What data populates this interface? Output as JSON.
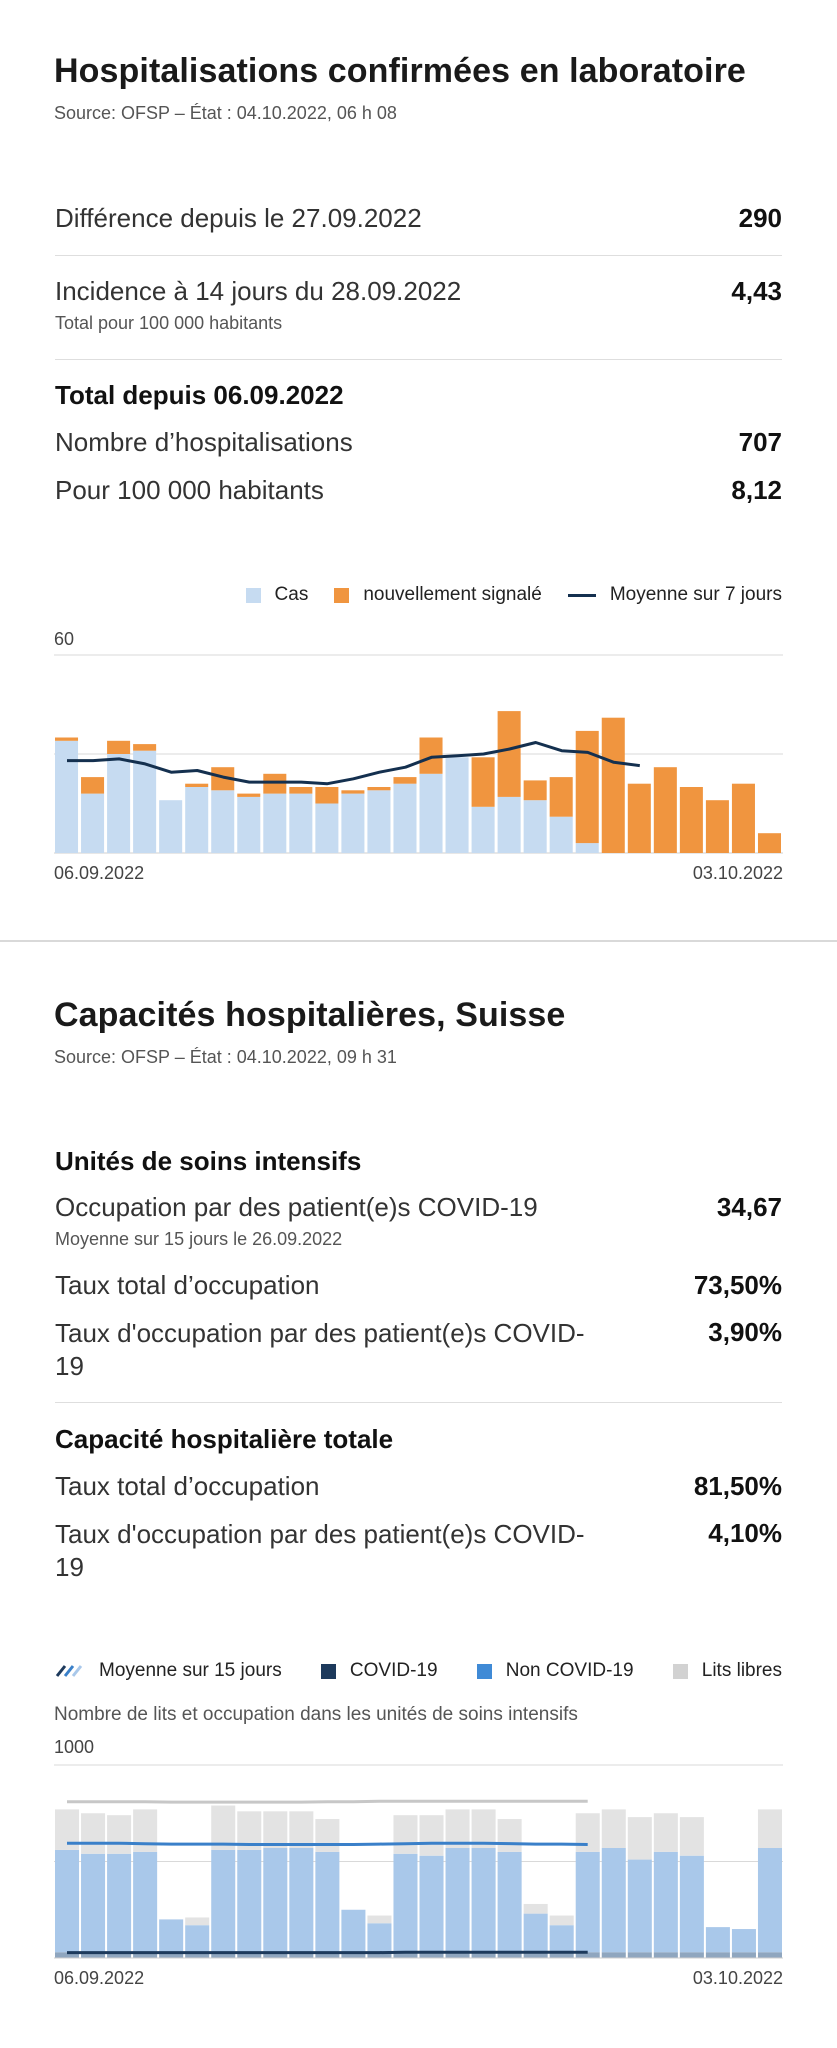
{
  "hosp": {
    "title": "Hospitalisations confirmées en laboratoire",
    "source": "Source: OFSP – État : 04.10.2022, 06 h 08",
    "diff_label": "Différence depuis le 27.09.2022",
    "diff_value": "290",
    "incidence_label": "Incidence à 14 jours du 28.09.2022",
    "incidence_value": "4,43",
    "incidence_sub": "Total pour 100 000 habitants",
    "total_header": "Total depuis 06.09.2022",
    "count_label": "Nombre d’hospitalisations",
    "count_value": "707",
    "per100k_label": "Pour 100 000 habitants",
    "per100k_value": "8,12",
    "legend": {
      "cases": "Cas",
      "new": "nouvellement signalé",
      "avg": "Moyenne sur 7 jours"
    }
  },
  "capacity": {
    "title": "Capacités hospitalières, Suisse",
    "source": "Source: OFSP – État : 04.10.2022, 09 h 31",
    "icu_header": "Unités de soins intensifs",
    "icu_covid_label": "Occupation par des patient(e)s COVID-19",
    "icu_covid_value": "34,67",
    "icu_covid_sub": "Moyenne sur 15 jours le 26.09.2022",
    "icu_total_label": "Taux total d’occupation",
    "icu_total_value": "73,50%",
    "icu_rate_label": "Taux d'occupation par des patient(e)s COVID-19",
    "icu_rate_value": "3,90%",
    "hosp_header": "Capacité hospitalière totale",
    "hosp_total_label": "Taux total d’occupation",
    "hosp_total_value": "81,50%",
    "hosp_rate_label": "Taux d'occupation par des patient(e)s COVID-19",
    "hosp_rate_value": "4,10%",
    "legend": {
      "avg": "Moyenne sur 15 jours",
      "covid": "COVID-19",
      "noncovid": "Non COVID-19",
      "free": "Lits libres"
    },
    "chart_title": "Nombre de lits et occupation dans les unités de soins intensifs"
  },
  "colors": {
    "cases": "#c6dbf1",
    "new": "#f0953f",
    "avg_hosp": "#14304f",
    "covid": "#1d3a5c",
    "noncovid": "#a9c8ea",
    "free": "#e3e3e3",
    "avg15_noncovid": "#3a80c9",
    "avg15_free": "#c7c7c7"
  },
  "chart_data": [
    {
      "type": "bar",
      "stacked": true,
      "x_start_label": "06.09.2022",
      "x_end_label": "03.10.2022",
      "ylim": [
        0,
        60
      ],
      "y_ticks": [
        60
      ],
      "grid": true,
      "legend_position": "top-right",
      "series": [
        {
          "name": "Cas",
          "values": [
            34,
            18,
            30,
            31,
            16,
            20,
            19,
            17,
            18,
            18,
            15,
            18,
            19,
            21,
            24,
            29,
            14,
            17,
            16,
            11,
            3,
            0,
            0,
            0,
            0,
            0,
            0,
            0
          ]
        },
        {
          "name": "nouvellement signalé",
          "values": [
            1,
            5,
            4,
            2,
            0,
            1,
            7,
            1,
            6,
            2,
            5,
            1,
            1,
            2,
            11,
            0,
            15,
            26,
            6,
            12,
            34,
            41,
            21,
            26,
            20,
            16,
            21,
            6
          ]
        },
        {
          "name": "Moyenne sur 7 jours",
          "type": "line",
          "values": [
            28,
            28,
            28.5,
            27,
            24.5,
            25,
            23,
            21.5,
            21.5,
            21.5,
            21,
            22.5,
            24.5,
            26,
            29,
            29.5,
            30,
            31.5,
            33.5,
            31,
            30.5,
            27.5,
            26.5,
            null,
            null,
            null,
            null,
            null
          ]
        }
      ]
    },
    {
      "type": "bar",
      "stacked": true,
      "title": "Nombre de lits et occupation dans les unités de soins intensifs",
      "x_start_label": "06.09.2022",
      "x_end_label": "03.10.2022",
      "ylim": [
        0,
        1000
      ],
      "y_ticks": [
        1000
      ],
      "grid": true,
      "legend_position": "top-right",
      "series": [
        {
          "name": "COVID-19",
          "values": [
            30,
            30,
            30,
            30,
            30,
            30,
            30,
            30,
            30,
            30,
            30,
            30,
            30,
            30,
            30,
            30,
            30,
            30,
            30,
            30,
            30,
            30,
            30,
            30,
            30,
            30,
            30,
            30
          ]
        },
        {
          "name": "Non COVID-19",
          "values": [
            530,
            510,
            510,
            520,
            170,
            140,
            530,
            530,
            540,
            540,
            520,
            220,
            150,
            510,
            500,
            540,
            540,
            520,
            200,
            140,
            520,
            540,
            480,
            520,
            500,
            130,
            120,
            540
          ]
        },
        {
          "name": "Lits libres",
          "values": [
            210,
            210,
            200,
            220,
            0,
            40,
            230,
            200,
            190,
            190,
            170,
            0,
            40,
            200,
            210,
            200,
            200,
            170,
            50,
            50,
            200,
            200,
            220,
            200,
            200,
            0,
            0,
            200
          ]
        },
        {
          "name": "Moyenne sur 15 jours",
          "type": "line",
          "values": [
            595,
            595,
            595,
            592,
            590,
            590,
            590,
            588,
            588,
            588,
            588,
            588,
            590,
            592,
            595,
            595,
            595,
            593,
            590,
            590,
            588,
            null,
            null,
            null,
            null,
            null,
            null,
            null
          ]
        },
        {
          "name": "Moyenne sur 15 jours (COVID-19)",
          "type": "line",
          "values": [
            28,
            28,
            28,
            28,
            28,
            28,
            28,
            28,
            28,
            28,
            28,
            28,
            28,
            30,
            30,
            30,
            30,
            30,
            30,
            30,
            30,
            null,
            null,
            null,
            null,
            null,
            null,
            null
          ]
        },
        {
          "name": "Moyenne sur 15 jours (Lits libres)",
          "type": "line",
          "values": [
            810,
            810,
            810,
            810,
            808,
            808,
            808,
            808,
            808,
            808,
            810,
            810,
            812,
            812,
            812,
            812,
            812,
            812,
            812,
            812,
            812,
            null,
            null,
            null,
            null,
            null,
            null,
            null
          ]
        }
      ]
    }
  ]
}
